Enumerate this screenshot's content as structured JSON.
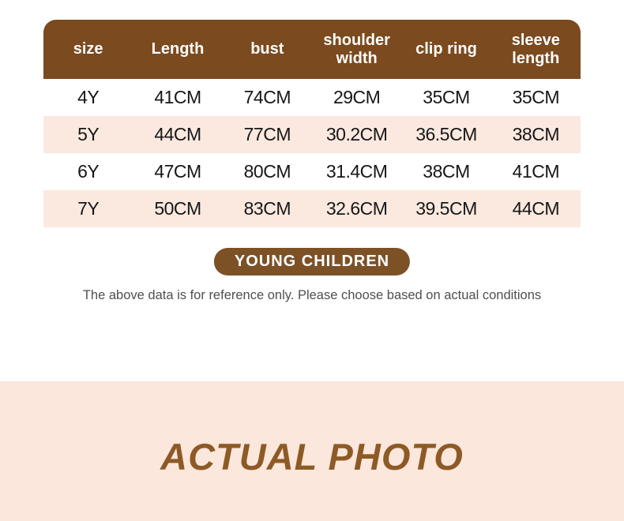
{
  "colors": {
    "header_brown": "#7b4a1e",
    "badge_brown": "#7d5126",
    "row_pink": "#fbe9e0",
    "banner_pink": "#fce7dc",
    "note_gray": "#4f4f4f",
    "banner_text_brown": "#8d5a26"
  },
  "table": {
    "headers": [
      "size",
      "Length",
      "bust",
      "shoulder width",
      "clip ring",
      "sleeve length"
    ],
    "rows": [
      [
        "4Y",
        "41CM",
        "74CM",
        "29CM",
        "35CM",
        "35CM"
      ],
      [
        "5Y",
        "44CM",
        "77CM",
        "30.2CM",
        "36.5CM",
        "38CM"
      ],
      [
        "6Y",
        "47CM",
        "80CM",
        "31.4CM",
        "38CM",
        "41CM"
      ],
      [
        "7Y",
        "50CM",
        "83CM",
        "32.6CM",
        "39.5CM",
        "44CM"
      ]
    ]
  },
  "badge": {
    "label": "YOUNG CHILDREN"
  },
  "note": "The above data is for reference only. Please choose based on actual conditions",
  "banner": {
    "label": "ACTUAL PHOTO"
  },
  "chart_data": {
    "type": "table",
    "title": "YOUNG CHILDREN",
    "columns": [
      "size",
      "Length",
      "bust",
      "shoulder width",
      "clip ring",
      "sleeve length"
    ],
    "rows": [
      [
        "4Y",
        "41CM",
        "74CM",
        "29CM",
        "35CM",
        "35CM"
      ],
      [
        "5Y",
        "44CM",
        "77CM",
        "30.2CM",
        "36.5CM",
        "38CM"
      ],
      [
        "6Y",
        "47CM",
        "80CM",
        "31.4CM",
        "38CM",
        "41CM"
      ],
      [
        "7Y",
        "50CM",
        "83CM",
        "32.6CM",
        "39.5CM",
        "44CM"
      ]
    ],
    "note": "The above data is for reference only. Please choose based on actual conditions",
    "footer_banner": "ACTUAL PHOTO"
  }
}
